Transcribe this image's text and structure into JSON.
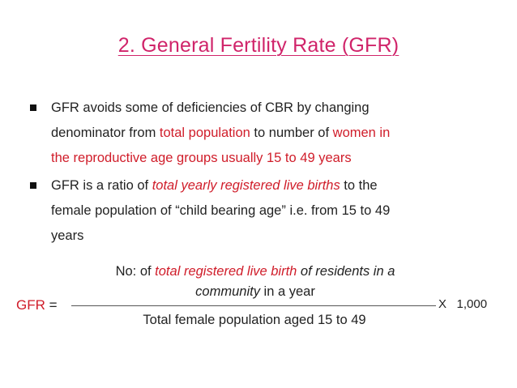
{
  "title": "2. General Fertility Rate (GFR)",
  "bullets": [
    {
      "line1_a": "GFR avoids some of deficiencies of CBR by changing",
      "line2_a": "denominator from ",
      "line2_b": "total population",
      "line2_c": " to number of ",
      "line2_d": "women in",
      "line3_a": "the reproductive age groups usually 15 to 49 years"
    },
    {
      "line1_a": "GFR is a ratio of ",
      "line1_b": "total yearly registered live births",
      "line1_c": " to the",
      "line2_a": "female population of “child bearing age” i.e. from 15 to 49",
      "line3_a": "years"
    }
  ],
  "formula": {
    "lhs_label": "GFR",
    "equals": " =",
    "numerator_a": "No: of ",
    "numerator_b": "total registered live birth",
    "numerator_c": " of residents in a",
    "numerator_d": "community",
    "numerator_e": " in a year",
    "denominator": "Total female population aged 15 to 49",
    "multiplier": "X   1,000"
  },
  "colors": {
    "title": "#d0246a",
    "highlight": "#d01d2a"
  }
}
